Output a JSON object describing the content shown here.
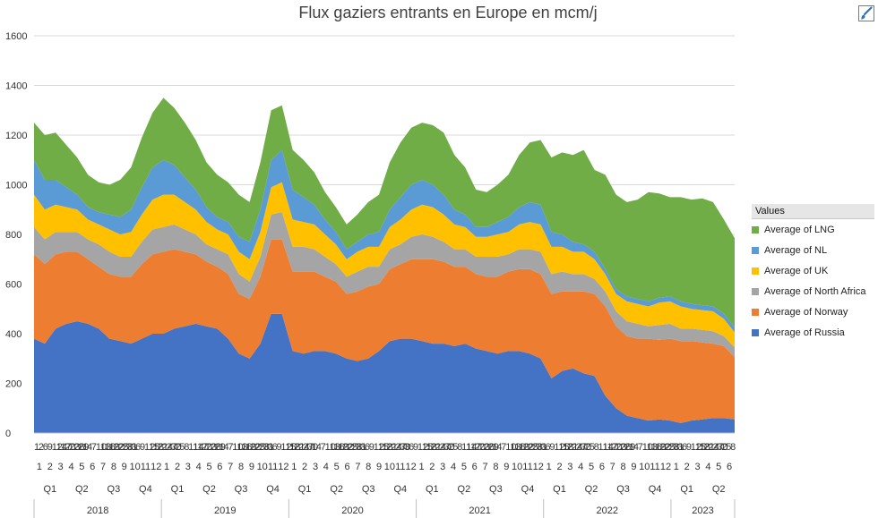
{
  "chart_data": {
    "type": "area",
    "stacked": true,
    "title": "Flux gaziers entrants en Europe en mcm/j",
    "xlabel": "",
    "ylabel": "",
    "ylim": [
      0,
      1600
    ],
    "yticks": [
      0,
      200,
      400,
      600,
      800,
      1000,
      1200,
      1400,
      1600
    ],
    "grid": true,
    "legend_position": "right",
    "legend_title": "Values",
    "x_axis_levels": {
      "years": [
        "2018",
        "2019",
        "2020",
        "2021",
        "2022",
        "2023"
      ],
      "quarters": [
        "Q1",
        "Q2",
        "Q3",
        "Q4",
        "Q1",
        "Q2",
        "Q3",
        "Q4",
        "Q1",
        "Q2",
        "Q3",
        "Q4",
        "Q1",
        "Q2",
        "Q3",
        "Q4",
        "Q1",
        "Q2",
        "Q3",
        "Q4",
        "Q1",
        "Q2"
      ],
      "months": [
        "1",
        "2",
        "3",
        "4",
        "5",
        "6",
        "7",
        "8",
        "9",
        "10",
        "11",
        "12",
        "1",
        "2",
        "3",
        "4",
        "5",
        "6",
        "7",
        "8",
        "9",
        "10",
        "11",
        "12",
        "1",
        "2",
        "3",
        "4",
        "5",
        "6",
        "7",
        "8",
        "9",
        "10",
        "11",
        "12",
        "1",
        "2",
        "3",
        "4",
        "5",
        "6",
        "7",
        "8",
        "9",
        "10",
        "11",
        "12",
        "1",
        "2",
        "3",
        "4",
        "5",
        "6",
        "7",
        "8",
        "9",
        "10",
        "11",
        "12",
        "1",
        "2",
        "3",
        "4",
        "5",
        "6"
      ],
      "days": [
        "1",
        "2",
        "6",
        "9",
        "12",
        "14",
        "17",
        "20",
        "23",
        "26",
        "29",
        "1",
        "4",
        "7",
        "10",
        "13",
        "16",
        "19",
        "22",
        "25",
        "28",
        "31",
        "3",
        "6",
        "9",
        "12",
        "15",
        "18",
        "21",
        "24",
        "27",
        "30",
        "2",
        "5",
        "8",
        "11",
        "14",
        "17",
        "20",
        "23",
        "26",
        "29",
        "1",
        "4",
        "7",
        "10",
        "13",
        "16",
        "19",
        "22",
        "25",
        "28",
        "31",
        "3",
        "6",
        "9",
        "12",
        "15",
        "18",
        "21",
        "24",
        "27",
        "30",
        "1",
        "4",
        "7",
        "10",
        "13",
        "16",
        "19",
        "22",
        "25",
        "28",
        "31",
        "3",
        "6",
        "9",
        "12",
        "15",
        "18",
        "21",
        "24",
        "27",
        "30",
        "3",
        "6",
        "9",
        "12",
        "15",
        "18",
        "21",
        "24",
        "27",
        "30",
        "2",
        "5",
        "8",
        "11",
        "14",
        "17",
        "20",
        "23",
        "26",
        "29",
        "1",
        "4",
        "7",
        "10",
        "13",
        "16",
        "19",
        "22",
        "25",
        "28",
        "31",
        "3",
        "6",
        "9",
        "12",
        "15",
        "18",
        "21",
        "24",
        "27",
        "30",
        "2",
        "5",
        "8",
        "11",
        "14",
        "17",
        "20",
        "23",
        "26",
        "29",
        "1",
        "4",
        "7",
        "10",
        "13",
        "16",
        "19",
        "22",
        "25",
        "28",
        "31",
        "3",
        "6",
        "9",
        "12",
        "15",
        "18",
        "21",
        "24",
        "27",
        "30",
        "2",
        "5",
        "8"
      ]
    },
    "x": [
      "2018-01",
      "2018-02",
      "2018-03",
      "2018-04",
      "2018-05",
      "2018-06",
      "2018-07",
      "2018-08",
      "2018-09",
      "2018-10",
      "2018-11",
      "2018-12",
      "2019-01",
      "2019-02",
      "2019-03",
      "2019-04",
      "2019-05",
      "2019-06",
      "2019-07",
      "2019-08",
      "2019-09",
      "2019-10",
      "2019-11",
      "2019-12",
      "2020-01",
      "2020-02",
      "2020-03",
      "2020-04",
      "2020-05",
      "2020-06",
      "2020-07",
      "2020-08",
      "2020-09",
      "2020-10",
      "2020-11",
      "2020-12",
      "2021-01",
      "2021-02",
      "2021-03",
      "2021-04",
      "2021-05",
      "2021-06",
      "2021-07",
      "2021-08",
      "2021-09",
      "2021-10",
      "2021-11",
      "2021-12",
      "2022-01",
      "2022-02",
      "2022-03",
      "2022-04",
      "2022-05",
      "2022-06",
      "2022-07",
      "2022-08",
      "2022-09",
      "2022-10",
      "2022-11",
      "2022-12",
      "2023-01",
      "2023-02",
      "2023-03",
      "2023-04",
      "2023-05",
      "2023-06"
    ],
    "series": [
      {
        "name": "Average of Russia",
        "color": "#4472c4",
        "values": [
          380,
          360,
          420,
          440,
          450,
          440,
          420,
          380,
          370,
          360,
          380,
          400,
          400,
          420,
          430,
          440,
          430,
          420,
          380,
          320,
          300,
          360,
          480,
          480,
          330,
          320,
          330,
          330,
          320,
          300,
          290,
          300,
          330,
          370,
          380,
          380,
          370,
          360,
          360,
          350,
          360,
          340,
          330,
          320,
          330,
          330,
          320,
          300,
          220,
          250,
          260,
          240,
          230,
          150,
          100,
          70,
          60,
          50,
          55,
          50,
          40,
          50,
          55,
          60,
          60,
          55
        ]
      },
      {
        "name": "Average of Norway",
        "color": "#ed7d31",
        "values": [
          340,
          320,
          300,
          290,
          280,
          260,
          250,
          260,
          260,
          270,
          300,
          320,
          330,
          320,
          300,
          280,
          260,
          250,
          260,
          240,
          240,
          270,
          300,
          300,
          320,
          330,
          320,
          300,
          290,
          260,
          280,
          290,
          270,
          290,
          300,
          320,
          330,
          340,
          330,
          320,
          310,
          300,
          300,
          310,
          320,
          330,
          340,
          340,
          340,
          320,
          310,
          330,
          330,
          360,
          330,
          320,
          320,
          330,
          320,
          330,
          330,
          320,
          310,
          300,
          290,
          250
        ]
      },
      {
        "name": "Average of North Africa",
        "color": "#a5a5a5",
        "values": [
          110,
          100,
          90,
          80,
          80,
          80,
          90,
          90,
          80,
          80,
          90,
          100,
          100,
          100,
          90,
          80,
          70,
          70,
          80,
          80,
          70,
          80,
          100,
          110,
          100,
          100,
          90,
          80,
          70,
          70,
          80,
          80,
          70,
          80,
          80,
          90,
          100,
          90,
          80,
          70,
          70,
          70,
          80,
          80,
          70,
          80,
          80,
          90,
          80,
          80,
          70,
          70,
          60,
          60,
          60,
          60,
          60,
          50,
          60,
          60,
          50,
          50,
          50,
          50,
          40,
          40
        ]
      },
      {
        "name": "Average of UK",
        "color": "#ffc000",
        "values": [
          130,
          120,
          110,
          100,
          90,
          80,
          80,
          90,
          90,
          100,
          110,
          120,
          130,
          120,
          110,
          100,
          90,
          80,
          80,
          90,
          90,
          100,
          110,
          120,
          110,
          100,
          100,
          90,
          80,
          70,
          80,
          80,
          80,
          90,
          100,
          110,
          120,
          120,
          110,
          100,
          90,
          80,
          80,
          90,
          90,
          100,
          110,
          110,
          110,
          100,
          90,
          90,
          80,
          70,
          70,
          80,
          80,
          80,
          90,
          90,
          90,
          80,
          80,
          80,
          70,
          60
        ]
      },
      {
        "name": "Average of NL",
        "color": "#5b9bd5",
        "values": [
          140,
          120,
          100,
          80,
          60,
          50,
          50,
          60,
          70,
          90,
          110,
          130,
          140,
          120,
          100,
          80,
          60,
          50,
          50,
          60,
          70,
          90,
          110,
          130,
          120,
          100,
          80,
          60,
          50,
          40,
          40,
          50,
          60,
          70,
          90,
          100,
          100,
          90,
          80,
          60,
          50,
          40,
          40,
          50,
          60,
          70,
          80,
          80,
          60,
          50,
          40,
          30,
          30,
          20,
          20,
          20,
          20,
          20,
          20,
          20,
          20,
          20,
          20,
          20,
          20,
          20
        ]
      },
      {
        "name": "Average of LNG",
        "color": "#70ad47",
        "values": [
          150,
          180,
          190,
          170,
          150,
          130,
          120,
          120,
          150,
          170,
          200,
          220,
          250,
          230,
          220,
          200,
          180,
          170,
          160,
          170,
          160,
          190,
          200,
          180,
          160,
          150,
          130,
          110,
          100,
          100,
          110,
          130,
          150,
          190,
          220,
          230,
          230,
          240,
          250,
          220,
          190,
          150,
          140,
          150,
          170,
          210,
          240,
          260,
          300,
          330,
          350,
          380,
          330,
          380,
          380,
          380,
          400,
          440,
          420,
          400,
          420,
          420,
          430,
          420,
          380,
          360
        ]
      }
    ]
  }
}
